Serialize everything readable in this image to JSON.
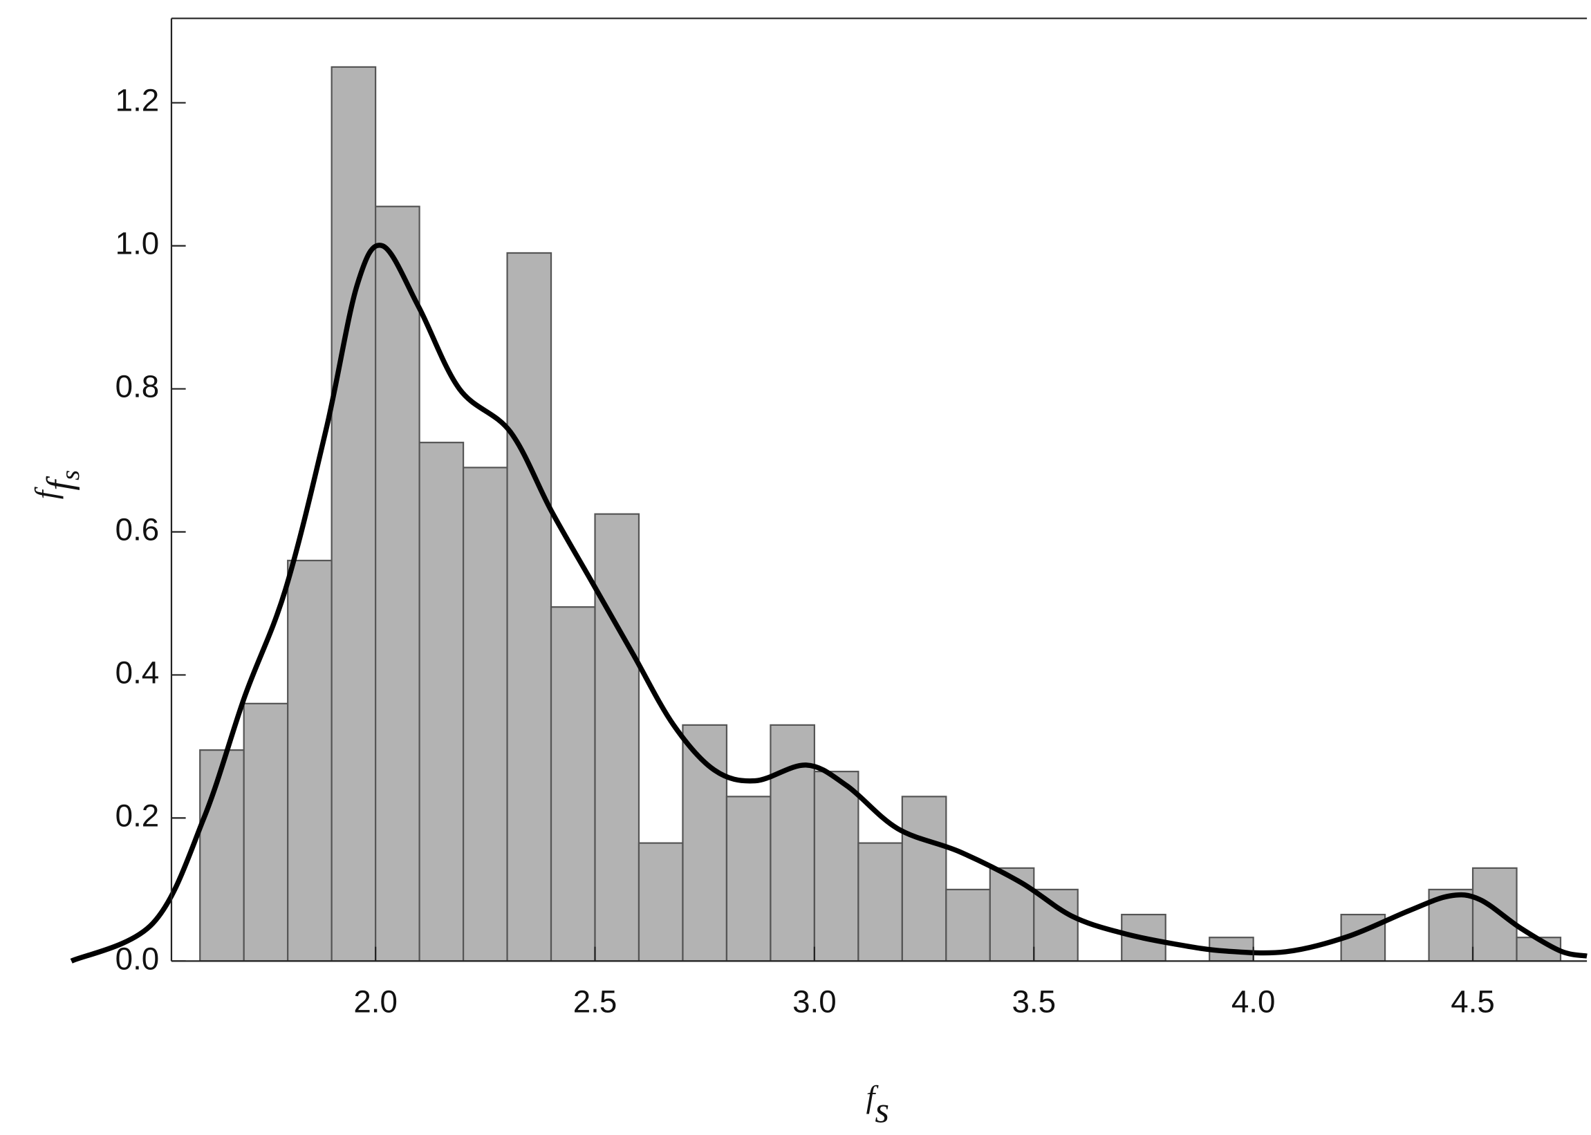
{
  "chart_data": [
    {
      "type": "histogram",
      "bins": [
        1.6,
        1.7,
        1.8,
        1.9,
        2.0,
        2.1,
        2.2,
        2.3,
        2.4,
        2.5,
        2.6,
        2.7,
        2.8,
        2.9,
        3.0,
        3.1,
        3.2,
        3.3,
        3.4,
        3.5,
        3.6,
        3.7,
        3.8,
        3.9,
        4.0,
        4.1,
        4.2,
        4.3,
        4.4,
        4.5,
        4.6,
        4.7
      ],
      "values": [
        0.295,
        0.36,
        0.56,
        1.25,
        1.055,
        0.725,
        0.69,
        0.99,
        0.495,
        0.625,
        0.165,
        0.33,
        0.23,
        0.33,
        0.265,
        0.165,
        0.23,
        0.1,
        0.13,
        0.1,
        0,
        0.065,
        0,
        0.033,
        0,
        0,
        0.065,
        0,
        0.1,
        0.13,
        0.033
      ],
      "color": "#b3b3b3",
      "xlim": [
        1.535,
        4.76
      ],
      "ylim": [
        0,
        1.318
      ],
      "xticks": [
        {
          "value": 2,
          "label": "2.0"
        },
        {
          "value": 2.5,
          "label": "2.5"
        },
        {
          "value": 3,
          "label": "3.0"
        },
        {
          "value": 3.5,
          "label": "3.5"
        },
        {
          "value": 4,
          "label": "4.0"
        },
        {
          "value": 4.5,
          "label": "4.5"
        }
      ],
      "yticks": [
        {
          "value": 0,
          "label": "0.0"
        },
        0.2,
        0.4,
        0.6,
        0.8,
        {
          "value": 1,
          "label": "1.0"
        },
        1.2
      ],
      "xlabel": {
        "main": "f",
        "sub": "s"
      },
      "ylabel": {
        "main": "f",
        "sub": "f",
        "subsub": "s"
      }
    },
    {
      "type": "line",
      "color": "#000000",
      "x": [
        1.307,
        1.493,
        1.609,
        1.702,
        1.795,
        1.888,
        1.958,
        2.016,
        2.098,
        2.191,
        2.307,
        2.4,
        2.493,
        2.586,
        2.679,
        2.772,
        2.865,
        2.981,
        3.074,
        3.19,
        3.33,
        3.47,
        3.586,
        3.702,
        3.819,
        3.935,
        4.074,
        4.214,
        4.353,
        4.447,
        4.516,
        4.609,
        4.7,
        4.76
      ],
      "values": [
        0,
        0.053,
        0.2,
        0.37,
        0.52,
        0.745,
        0.945,
        1.0,
        0.915,
        0.8,
        0.74,
        0.63,
        0.53,
        0.43,
        0.33,
        0.267,
        0.252,
        0.274,
        0.245,
        0.185,
        0.153,
        0.11,
        0.063,
        0.039,
        0.024,
        0.014,
        0.013,
        0.034,
        0.07,
        0.091,
        0.086,
        0.046,
        0.014,
        0.007
      ]
    }
  ]
}
